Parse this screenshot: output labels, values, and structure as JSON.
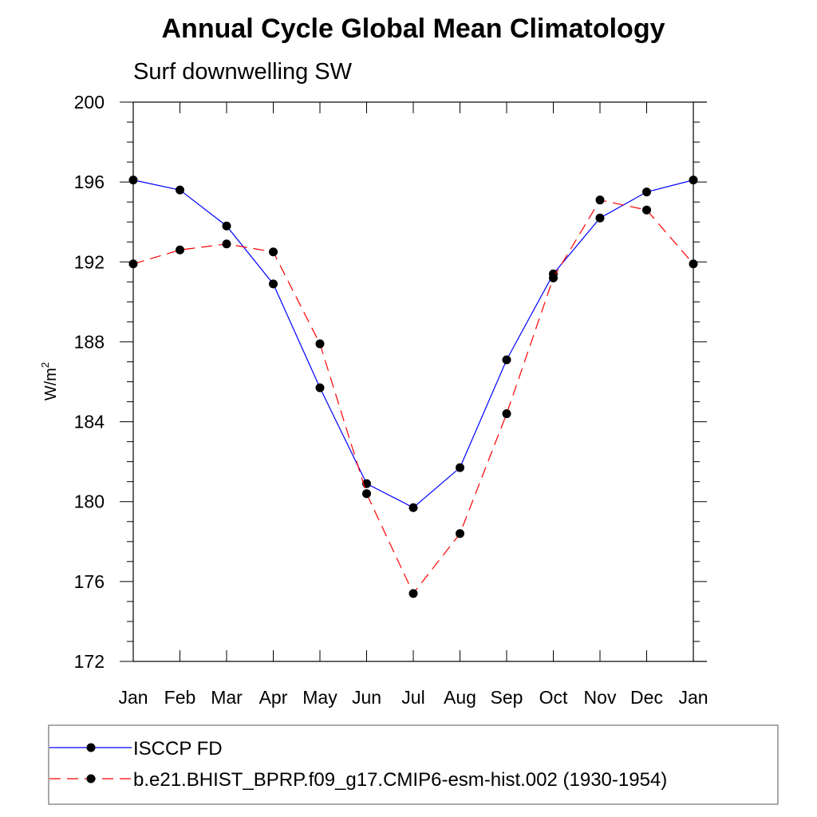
{
  "chart_data": {
    "type": "line",
    "title": "Annual Cycle Global Mean Climatology",
    "subtitle": "Surf downwelling SW",
    "ylabel": "W/m",
    "ylabel_superscript": "2",
    "xlabel": "",
    "categories": [
      "Jan",
      "Feb",
      "Mar",
      "Apr",
      "May",
      "Jun",
      "Jul",
      "Aug",
      "Sep",
      "Oct",
      "Nov",
      "Dec",
      "Jan"
    ],
    "ylim": [
      172,
      200
    ],
    "yticks": [
      "172",
      "176",
      "180",
      "184",
      "188",
      "192",
      "196",
      "200"
    ],
    "grid": false,
    "legend_position": "bottom",
    "series": [
      {
        "name": "ISCCP FD",
        "color": "#0000ff",
        "line_style": "solid",
        "marker": "filled-circle",
        "values": [
          196.1,
          195.6,
          193.8,
          190.9,
          185.7,
          180.9,
          179.7,
          181.7,
          187.1,
          191.4,
          194.2,
          195.5,
          196.1
        ]
      },
      {
        "name": "b.e21.BHIST_BPRP.f09_g17.CMIP6-esm-hist.002 (1930-1954)",
        "color": "#ff0000",
        "line_style": "dashed",
        "marker": "filled-circle",
        "values": [
          191.9,
          192.6,
          192.9,
          192.5,
          187.9,
          180.4,
          175.4,
          178.4,
          184.4,
          191.2,
          195.1,
          194.6,
          191.9
        ]
      }
    ]
  }
}
